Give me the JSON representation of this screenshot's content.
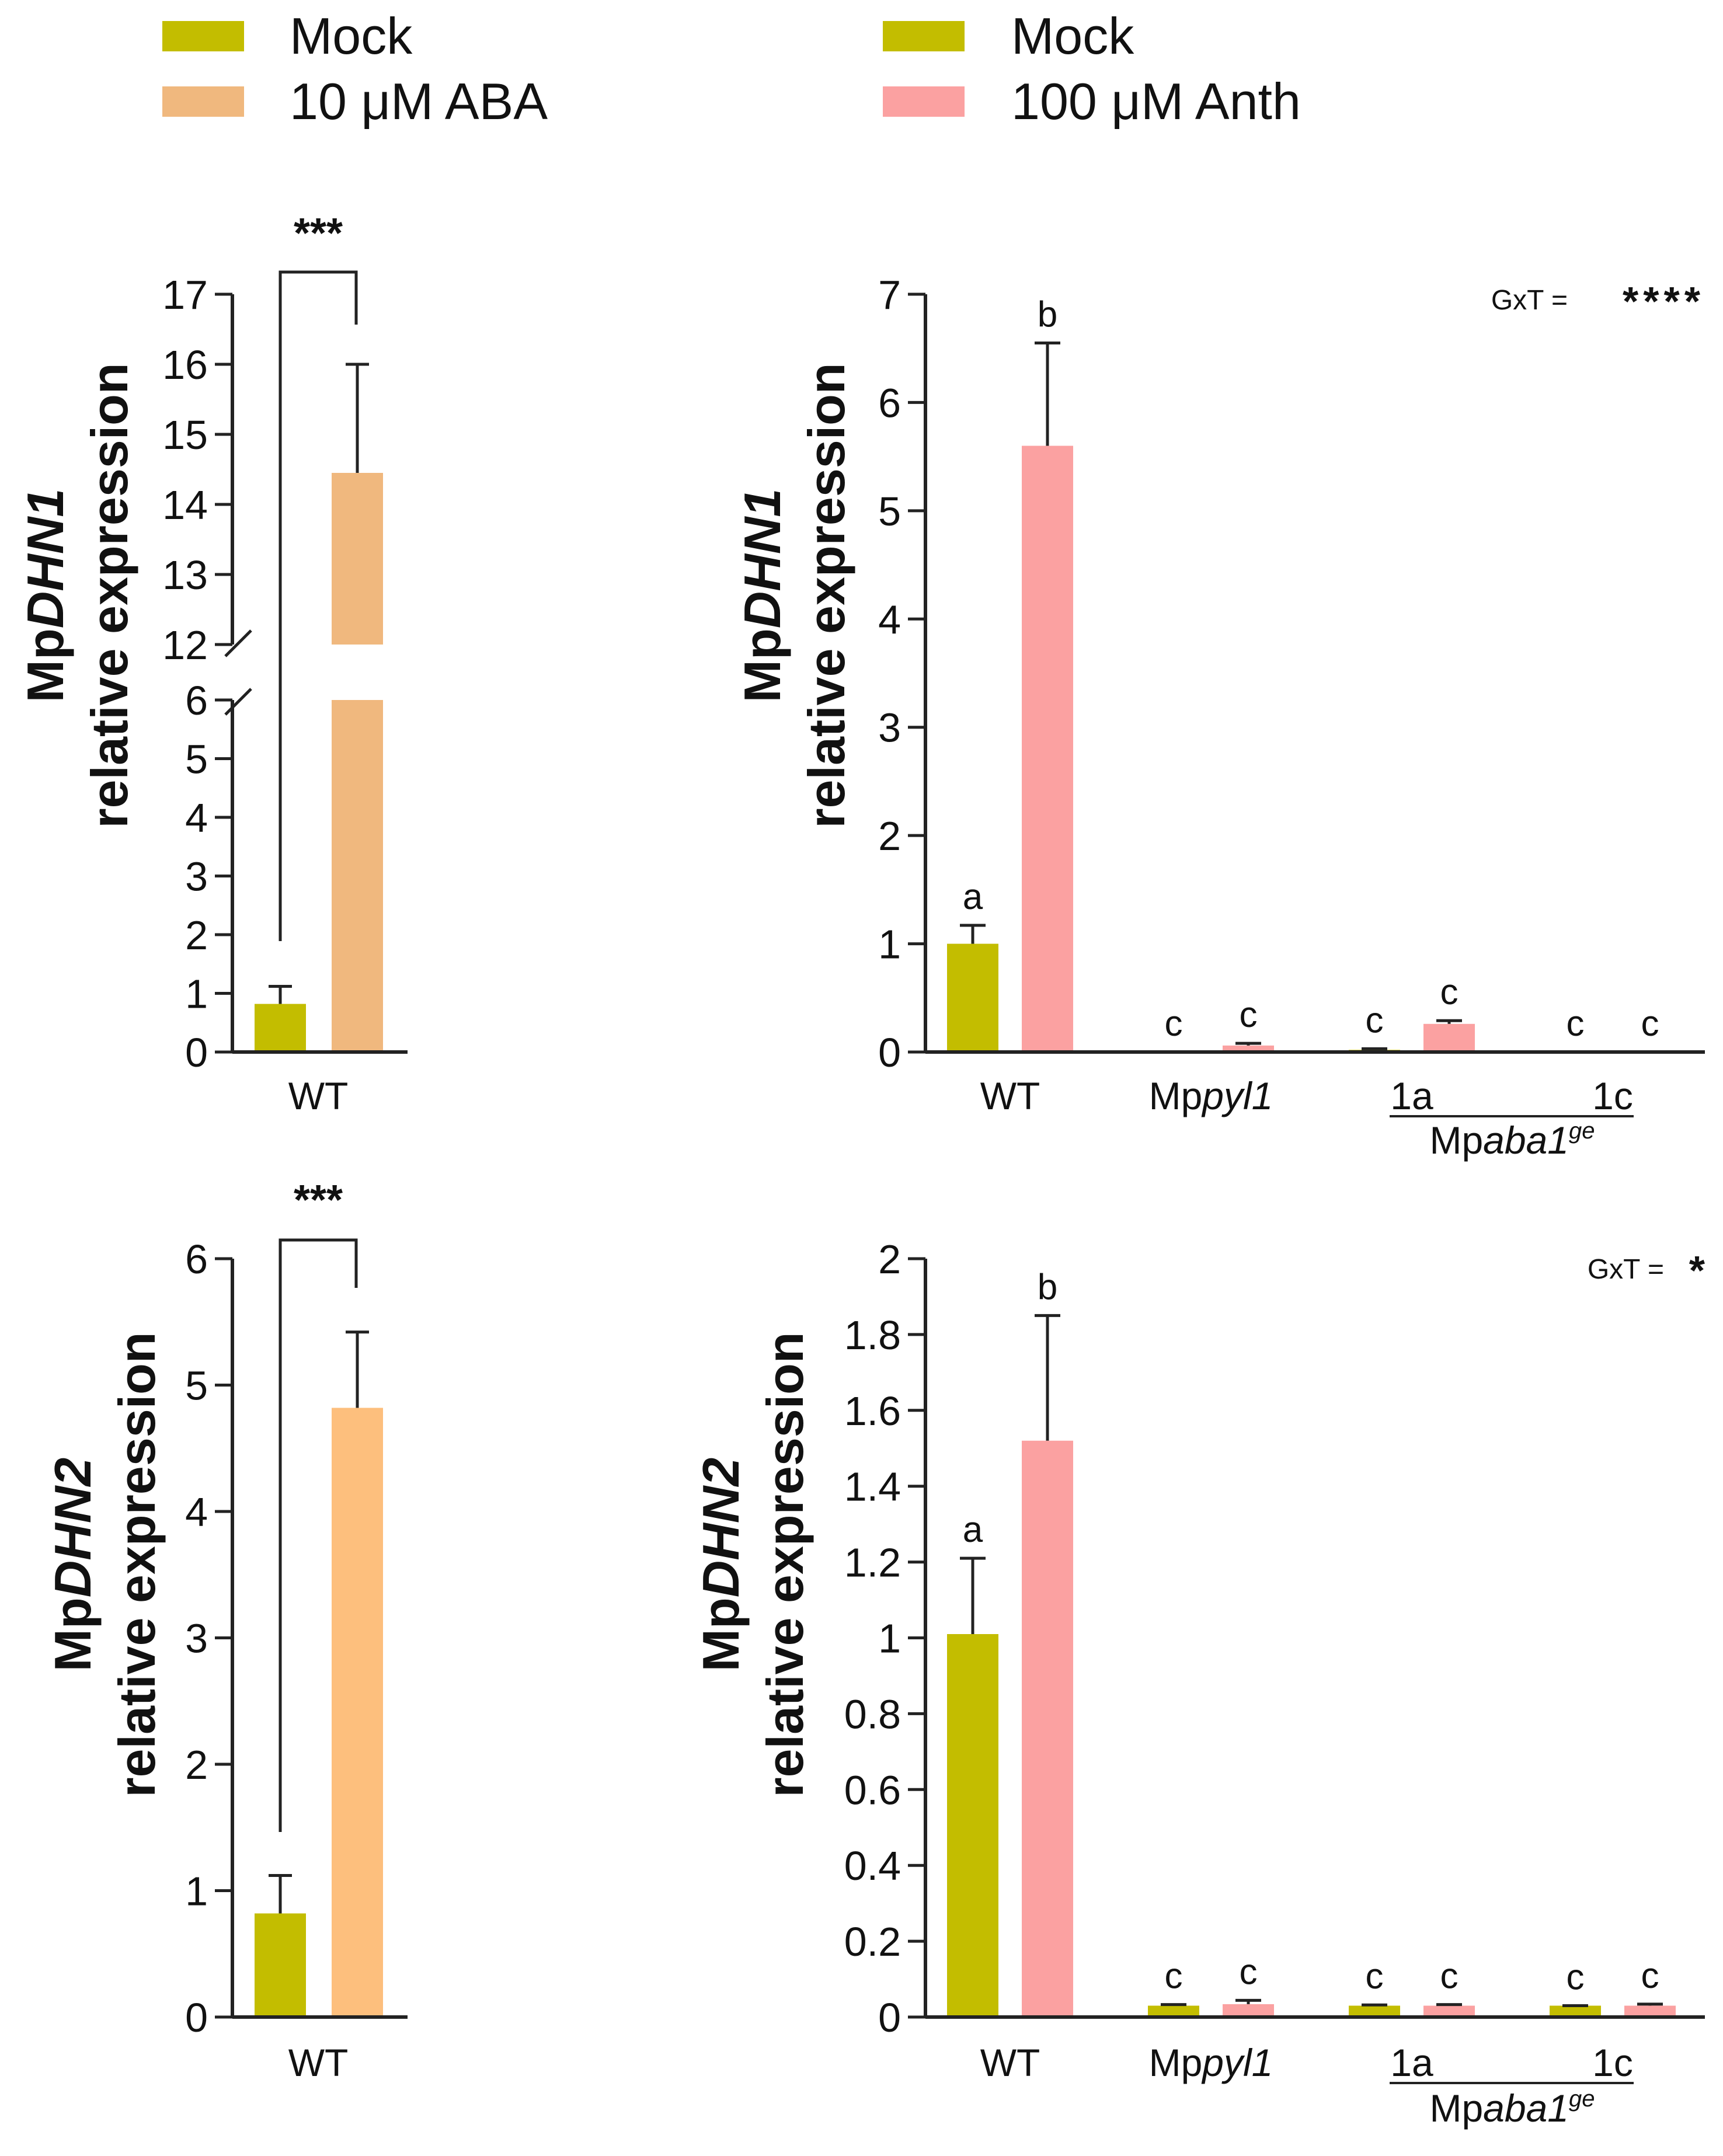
{
  "colors": {
    "mock": "#c3bd00",
    "aba": "#f0b87e",
    "aba_dhn2": "#fdbf7d",
    "anth": "#fba1a1",
    "axis": "#222222"
  },
  "legend_left": [
    {
      "label": "Mock",
      "color": "#c3bd00"
    },
    {
      "label": "10 μM ABA",
      "color": "#f0b87e"
    }
  ],
  "legend_right": [
    {
      "label": "Mock",
      "color": "#c3bd00"
    },
    {
      "label": "100 μM Anth",
      "color": "#fba1a1"
    }
  ],
  "panels": {
    "a": {
      "ylabel_gene": "MpDHN1",
      "ylabel_pre": "Mp",
      "ylabel_ital": "DHN1",
      "ylabel_line2": "relative expression",
      "sig": "***",
      "xlabel": "WT"
    },
    "b": {
      "ylabel_gene": "MpDHN1",
      "ylabel_pre": "Mp",
      "ylabel_ital": "DHN1",
      "ylabel_line2": "relative expression",
      "gxt_label": "GxT =",
      "gxt_stars": "****"
    },
    "c": {
      "ylabel_gene": "MpDHN2",
      "ylabel_pre": "Mp",
      "ylabel_ital": "DHN2",
      "ylabel_line2": "relative expression",
      "sig": "***",
      "xlabel": "WT"
    },
    "d": {
      "ylabel_gene": "MpDHN2",
      "ylabel_pre": "Mp",
      "ylabel_ital": "DHN2",
      "ylabel_line2": "relative expression",
      "gxt_label": "GxT =",
      "gxt_stars": "*"
    }
  },
  "genotype_labels": {
    "wt": "WT",
    "pyl_pre": "Mp",
    "pyl_ital": "pyl1",
    "line_1a": "1a",
    "line_1c": "1c",
    "aba1_pre": "Mp",
    "aba1_ital": "aba1",
    "aba1_sup": "ge"
  },
  "chart_data": [
    {
      "type": "bar",
      "panel": "a",
      "categories": [
        "WT"
      ],
      "series": [
        {
          "name": "Mock",
          "values": [
            0.82
          ],
          "errors": [
            0.3
          ]
        },
        {
          "name": "10 μM ABA",
          "values": [
            14.45
          ],
          "errors": [
            1.55
          ]
        }
      ],
      "ylabel": "MpDHN1 relative expression",
      "ylim": [
        0,
        17
      ],
      "y_axis_break": [
        6,
        12
      ],
      "yticks_lower": [
        0,
        1,
        2,
        3,
        4,
        5,
        6
      ],
      "yticks_upper": [
        12,
        13,
        14,
        15,
        16,
        17
      ],
      "significance": "***"
    },
    {
      "type": "bar",
      "panel": "b",
      "categories": [
        "WT",
        "Mppyl1",
        "1a",
        "1c"
      ],
      "category_group": {
        "label": "Mpaba1ge",
        "members": [
          "1a",
          "1c"
        ]
      },
      "series": [
        {
          "name": "Mock",
          "values": [
            1.0,
            0.0,
            0.02,
            0.0
          ],
          "errors": [
            0.17,
            0.0,
            0.01,
            0.0
          ],
          "letters": [
            "a",
            "c",
            "c",
            "c"
          ]
        },
        {
          "name": "100 μM Anth",
          "values": [
            5.6,
            0.06,
            0.26,
            0.0
          ],
          "errors": [
            0.95,
            0.02,
            0.03,
            0.0
          ],
          "letters": [
            "b",
            "c",
            "c",
            "c"
          ]
        }
      ],
      "ylabel": "MpDHN1 relative expression",
      "ylim": [
        0,
        7
      ],
      "yticks": [
        0,
        1,
        2,
        3,
        4,
        5,
        6,
        7
      ],
      "annotation": "GxT = ****"
    },
    {
      "type": "bar",
      "panel": "c",
      "categories": [
        "WT"
      ],
      "series": [
        {
          "name": "Mock",
          "values": [
            0.82
          ],
          "errors": [
            0.3
          ]
        },
        {
          "name": "10 μM ABA",
          "values": [
            4.82
          ],
          "errors": [
            0.6
          ]
        }
      ],
      "ylabel": "MpDHN2 relative expression",
      "ylim": [
        0,
        6
      ],
      "yticks": [
        0,
        1,
        2,
        3,
        4,
        5,
        6
      ],
      "significance": "***"
    },
    {
      "type": "bar",
      "panel": "d",
      "categories": [
        "WT",
        "Mppyl1",
        "1a",
        "1c"
      ],
      "category_group": {
        "label": "Mpaba1ge",
        "members": [
          "1a",
          "1c"
        ]
      },
      "series": [
        {
          "name": "Mock",
          "values": [
            1.01,
            0.03,
            0.03,
            0.03
          ],
          "errors": [
            0.2,
            0.003,
            0.002,
            0.0
          ],
          "letters": [
            "a",
            "c",
            "c",
            "c"
          ]
        },
        {
          "name": "100 μM Anth",
          "values": [
            1.52,
            0.034,
            0.03,
            0.03
          ],
          "errors": [
            0.33,
            0.01,
            0.003,
            0.004
          ],
          "letters": [
            "b",
            "c",
            "c",
            "c"
          ]
        }
      ],
      "ylabel": "MpDHN2 relative expression",
      "ylim": [
        0,
        2
      ],
      "yticks": [
        0,
        0.2,
        0.4,
        0.6,
        0.8,
        1.0,
        1.2,
        1.4,
        1.6,
        1.8,
        2
      ],
      "annotation": "GxT = *"
    }
  ]
}
